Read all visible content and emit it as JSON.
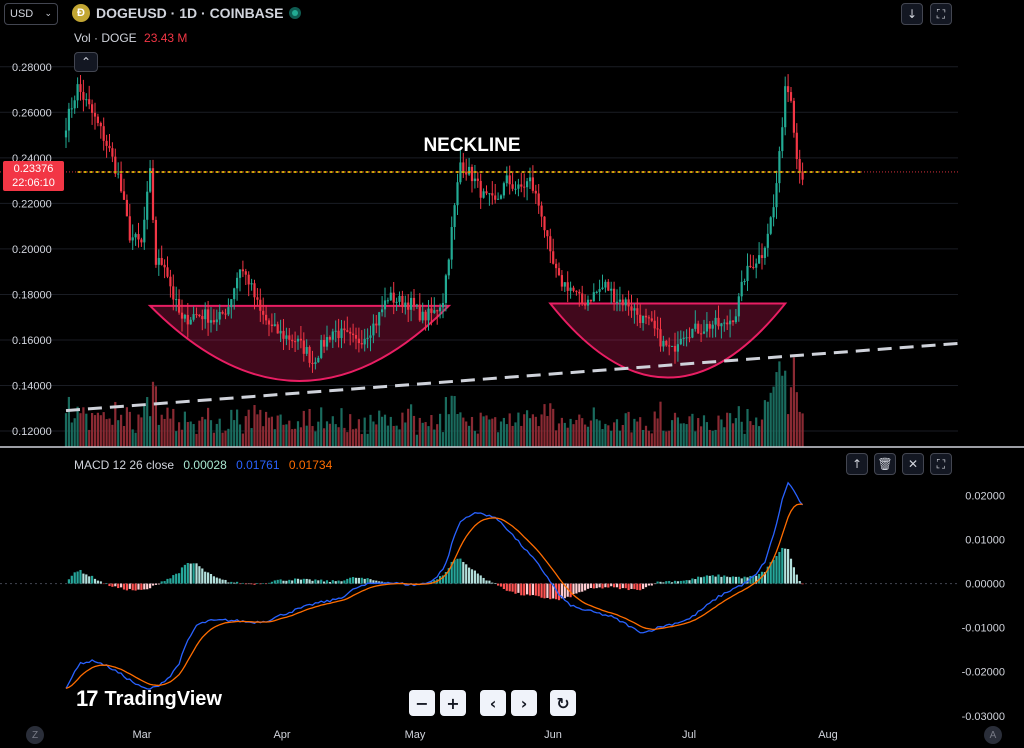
{
  "header": {
    "currency": "USD",
    "coin_glyph": "Ð",
    "symbol": "DOGEUSD · 1D · COINBASE",
    "volume_label": "Vol · DOGE",
    "volume_value": "23.43 M",
    "price_tag_value": "0.23376",
    "price_tag_timer": "22:06:10",
    "annotation": "NECKLINE"
  },
  "macd": {
    "label": "MACD 12 26 close",
    "hist_value": "0.00028",
    "macd_value": "0.01761",
    "signal_value": "0.01734"
  },
  "watermark": "TradingView",
  "nav_buttons": [
    "−",
    "+",
    "‹",
    "›",
    "↻"
  ],
  "corners": {
    "left": "Z",
    "right": "A"
  },
  "colors": {
    "up": "#22ab94",
    "down": "#f23645",
    "macd": "#2962ff",
    "signal": "#ff6d00",
    "cup": "#e91e63",
    "neckline": "#c8b400"
  },
  "chart_data": {
    "type": "candlestick",
    "title": "DOGEUSD · 1D · COINBASE",
    "x_ticks": [
      "Mar",
      "Apr",
      "May",
      "Jun",
      "Jul",
      "Aug"
    ],
    "price_axis": {
      "ylim": [
        0.113,
        0.29
      ],
      "ticks": [
        "0.28000",
        "0.26000",
        "0.24000",
        "0.22000",
        "0.20000",
        "0.18000",
        "0.16000",
        "0.14000",
        "0.12000"
      ]
    },
    "macd_axis": {
      "ylim": [
        -0.0305,
        0.0235
      ],
      "ticks": [
        "0.02000",
        "0.01000",
        "0.00000",
        "-0.01000",
        "-0.02000",
        "-0.03000"
      ]
    },
    "neckline": 0.2338,
    "price_anchors": [
      [
        0,
        0.255
      ],
      [
        4,
        0.271
      ],
      [
        8,
        0.262
      ],
      [
        12,
        0.252
      ],
      [
        15,
        0.243
      ],
      [
        18,
        0.232
      ],
      [
        22,
        0.206
      ],
      [
        26,
        0.202
      ],
      [
        29,
        0.233
      ],
      [
        31,
        0.194
      ],
      [
        34,
        0.194
      ],
      [
        37,
        0.179
      ],
      [
        40,
        0.168
      ],
      [
        44,
        0.171
      ],
      [
        48,
        0.171
      ],
      [
        52,
        0.168
      ],
      [
        56,
        0.175
      ],
      [
        60,
        0.192
      ],
      [
        63,
        0.186
      ],
      [
        67,
        0.172
      ],
      [
        71,
        0.165
      ],
      [
        75,
        0.162
      ],
      [
        79,
        0.16
      ],
      [
        83,
        0.155
      ],
      [
        85,
        0.15
      ],
      [
        88,
        0.157
      ],
      [
        92,
        0.164
      ],
      [
        96,
        0.162
      ],
      [
        100,
        0.159
      ],
      [
        103,
        0.162
      ],
      [
        107,
        0.168
      ],
      [
        111,
        0.179
      ],
      [
        115,
        0.177
      ],
      [
        119,
        0.176
      ],
      [
        123,
        0.17
      ],
      [
        127,
        0.172
      ],
      [
        130,
        0.178
      ],
      [
        133,
        0.208
      ],
      [
        136,
        0.238
      ],
      [
        140,
        0.232
      ],
      [
        144,
        0.223
      ],
      [
        148,
        0.22
      ],
      [
        152,
        0.23
      ],
      [
        156,
        0.226
      ],
      [
        160,
        0.23
      ],
      [
        164,
        0.216
      ],
      [
        167,
        0.196
      ],
      [
        170,
        0.186
      ],
      [
        174,
        0.183
      ],
      [
        178,
        0.176
      ],
      [
        182,
        0.18
      ],
      [
        186,
        0.184
      ],
      [
        190,
        0.178
      ],
      [
        194,
        0.176
      ],
      [
        198,
        0.17
      ],
      [
        202,
        0.166
      ],
      [
        206,
        0.158
      ],
      [
        209,
        0.155
      ],
      [
        212,
        0.163
      ],
      [
        215,
        0.164
      ],
      [
        219,
        0.165
      ],
      [
        223,
        0.167
      ],
      [
        227,
        0.166
      ],
      [
        231,
        0.172
      ],
      [
        234,
        0.188
      ],
      [
        237,
        0.194
      ],
      [
        240,
        0.198
      ],
      [
        242,
        0.208
      ],
      [
        244,
        0.218
      ],
      [
        246,
        0.24
      ],
      [
        248,
        0.272
      ],
      [
        250,
        0.268
      ],
      [
        252,
        0.24
      ],
      [
        254,
        0.232
      ]
    ],
    "macd_anchors": [
      [
        0,
        -0.0235
      ],
      [
        5,
        -0.018
      ],
      [
        10,
        -0.0175
      ],
      [
        15,
        -0.019
      ],
      [
        20,
        -0.021
      ],
      [
        25,
        -0.0232
      ],
      [
        28,
        -0.024
      ],
      [
        31,
        -0.0235
      ],
      [
        36,
        -0.021
      ],
      [
        39,
        -0.018
      ],
      [
        42,
        -0.013
      ],
      [
        45,
        -0.0095
      ],
      [
        49,
        -0.0085
      ],
      [
        55,
        -0.0083
      ],
      [
        60,
        -0.0085
      ],
      [
        64,
        -0.0088
      ],
      [
        69,
        -0.0085
      ],
      [
        74,
        -0.0072
      ],
      [
        80,
        -0.0058
      ],
      [
        86,
        -0.0045
      ],
      [
        92,
        -0.0038
      ],
      [
        96,
        -0.0028
      ],
      [
        100,
        -0.001
      ],
      [
        105,
        0.0
      ],
      [
        110,
        0.0003
      ],
      [
        115,
        0.0
      ],
      [
        120,
        -0.0003
      ],
      [
        124,
        0.0
      ],
      [
        128,
        0.0015
      ],
      [
        131,
        0.0045
      ],
      [
        134,
        0.011
      ],
      [
        136,
        0.014
      ],
      [
        139,
        0.0155
      ],
      [
        142,
        0.016
      ],
      [
        146,
        0.0155
      ],
      [
        150,
        0.014
      ],
      [
        154,
        0.011
      ],
      [
        158,
        0.008
      ],
      [
        162,
        0.005
      ],
      [
        166,
        0.0015
      ],
      [
        170,
        -0.0025
      ],
      [
        173,
        -0.0045
      ],
      [
        176,
        -0.0055
      ],
      [
        182,
        -0.0065
      ],
      [
        188,
        -0.0075
      ],
      [
        194,
        -0.0095
      ],
      [
        197,
        -0.0108
      ],
      [
        200,
        -0.011
      ],
      [
        205,
        -0.0098
      ],
      [
        210,
        -0.009
      ],
      [
        215,
        -0.008
      ],
      [
        220,
        -0.0055
      ],
      [
        225,
        -0.003
      ],
      [
        230,
        -0.0012
      ],
      [
        234,
        0.0
      ],
      [
        238,
        0.002
      ],
      [
        241,
        0.005
      ],
      [
        244,
        0.011
      ],
      [
        247,
        0.019
      ],
      [
        249,
        0.023
      ],
      [
        251,
        0.021
      ],
      [
        254,
        0.0176
      ]
    ],
    "volume_axis_max": 0.3
  }
}
